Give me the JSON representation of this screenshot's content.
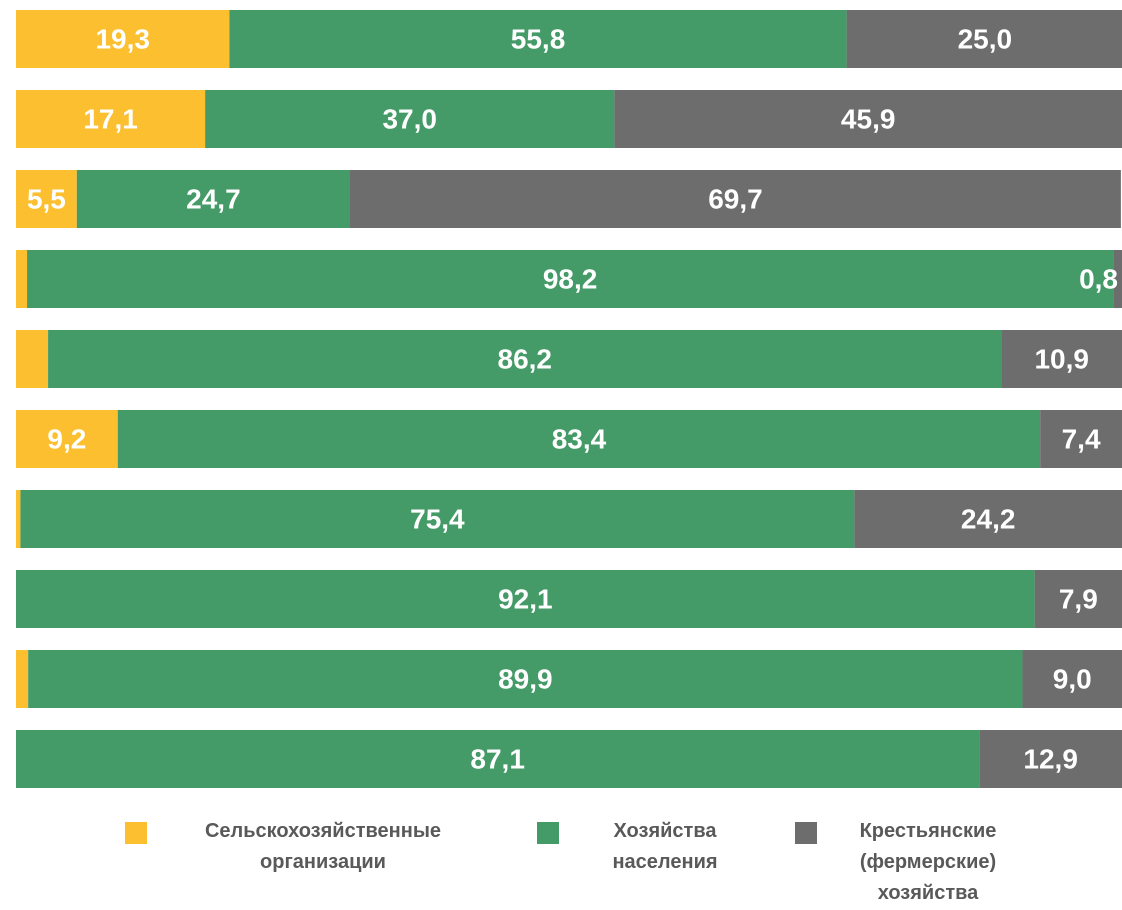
{
  "chart_data": {
    "type": "stacked_bar_horizontal_100",
    "categories": [
      null,
      null,
      null,
      null,
      null,
      null,
      null,
      null,
      null,
      null
    ],
    "xlim": [
      0,
      100
    ],
    "series": [
      {
        "name": "Сельскохозяйственные организации",
        "color": "#fbbf2f",
        "values": [
          19.3,
          17.1,
          5.5,
          1.0,
          2.9,
          9.2,
          0.4,
          0,
          1.1,
          0
        ],
        "value_labels": [
          "19,3",
          "17,1",
          "5,5",
          "1,0",
          "2,9",
          "9,2",
          "0,4",
          null,
          "1,1",
          null
        ]
      },
      {
        "name": "Хозяйства населения",
        "color": "#459b68",
        "values": [
          55.8,
          37.0,
          24.7,
          98.2,
          86.2,
          83.4,
          75.4,
          92.1,
          89.9,
          87.1
        ],
        "value_labels": [
          "55,8",
          "37,0",
          "24,7",
          "98,2",
          "86,2",
          "83,4",
          "75,4",
          "92,1",
          "89,9",
          "87,1"
        ]
      },
      {
        "name": "Крестьянские (фермерские) хозяйства",
        "color": "#6d6d6d",
        "values": [
          25.0,
          45.9,
          69.7,
          0.8,
          10.9,
          7.4,
          24.2,
          7.9,
          9.0,
          12.9
        ],
        "value_labels": [
          "25,0",
          "45,9",
          "69,7",
          "0,8",
          "10,9",
          "7,4",
          "24,2",
          "7,9",
          "9,0",
          "12,9"
        ]
      }
    ],
    "legend": "bottom"
  }
}
